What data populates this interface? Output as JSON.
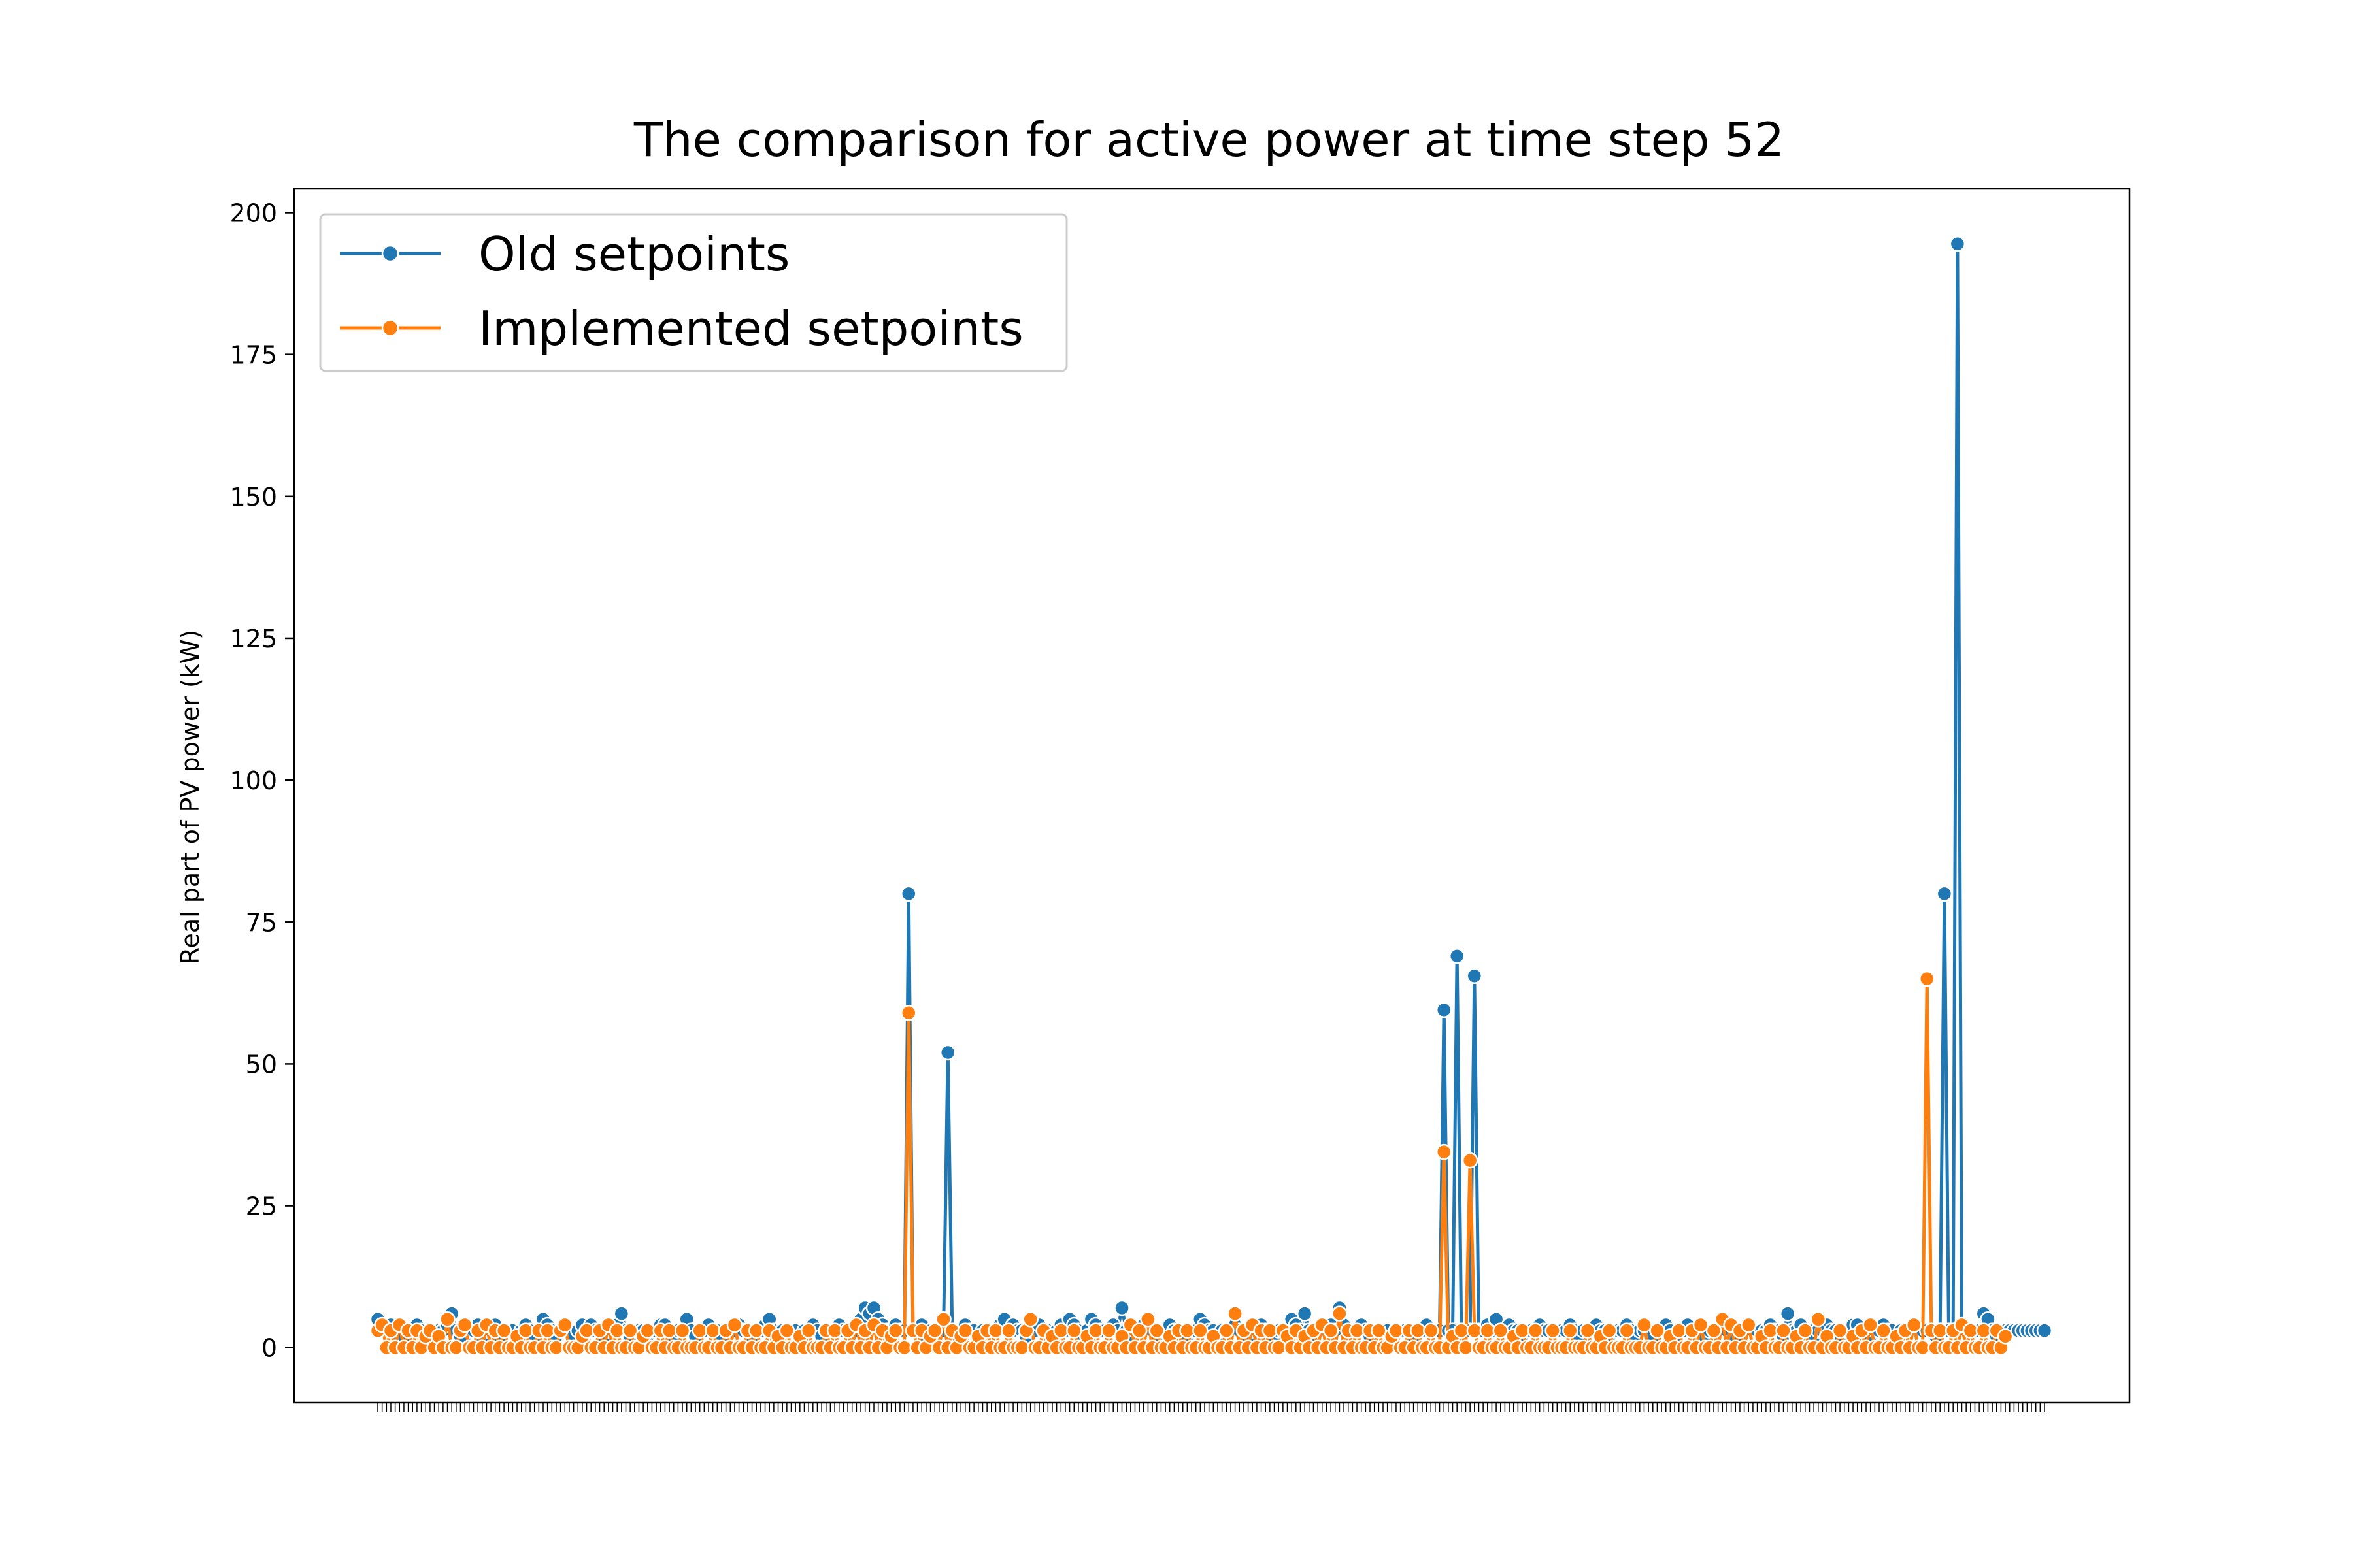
{
  "chart_data": {
    "type": "line",
    "title": "The comparison for active power at time step 52",
    "xlabel": "",
    "ylabel": "Real part of PV power (kW)",
    "ylim": [
      -9.7,
      204.2
    ],
    "yticks": [
      0,
      25,
      50,
      75,
      100,
      125,
      150,
      175,
      200
    ],
    "grid": false,
    "legend_position": "upper-left",
    "colors": {
      "old": "#1f77b4",
      "implemented": "#ff7f0e"
    },
    "series": [
      {
        "name": "Old setpoints",
        "values": [
          5,
          3,
          3,
          4,
          3,
          2,
          2,
          3,
          3,
          4,
          3,
          2,
          2,
          2,
          3,
          3,
          4,
          6,
          3,
          2,
          2,
          3,
          3,
          4,
          2,
          3,
          3,
          4,
          2,
          3,
          3,
          3,
          2,
          3,
          4,
          3,
          2,
          3,
          5,
          4,
          3,
          2,
          3,
          3,
          3,
          2,
          3,
          4,
          3,
          4,
          3,
          3,
          2,
          3,
          3,
          4,
          6,
          3,
          2,
          3,
          3,
          3,
          2,
          3,
          3,
          4,
          4,
          3,
          2,
          3,
          3,
          5,
          3,
          2,
          3,
          3,
          4,
          3,
          3,
          2,
          3,
          3,
          3,
          4,
          3,
          3,
          2,
          3,
          3,
          4,
          5,
          3,
          2,
          3,
          3,
          3,
          3,
          2,
          3,
          3,
          4,
          3,
          2,
          3,
          3,
          3,
          4,
          3,
          3,
          3,
          3,
          5,
          7,
          6,
          7,
          5,
          4,
          3,
          3,
          4,
          3,
          3,
          80,
          3,
          3,
          4,
          2,
          3,
          2,
          3,
          3,
          52,
          3,
          3,
          3,
          4,
          3,
          3,
          2,
          3,
          3,
          3,
          3,
          4,
          5,
          3,
          4,
          3,
          3,
          2,
          3,
          3,
          4,
          3,
          3,
          2,
          3,
          4,
          3,
          5,
          4,
          3,
          2,
          3,
          5,
          4,
          3,
          3,
          3,
          4,
          3,
          7,
          3,
          2,
          3,
          3,
          4,
          3,
          3,
          2,
          3,
          3,
          4,
          3,
          3,
          3,
          2,
          3,
          3,
          5,
          4,
          3,
          3,
          2,
          3,
          3,
          3,
          4,
          3,
          3,
          2,
          3,
          3,
          4,
          3,
          3,
          2,
          3,
          3,
          3,
          5,
          4,
          3,
          6,
          3,
          2,
          3,
          3,
          3,
          4,
          3,
          7,
          4,
          3,
          3,
          3,
          4,
          3,
          2,
          3,
          3,
          3,
          3,
          2,
          3,
          3,
          3,
          3,
          2,
          3,
          3,
          4,
          3,
          3,
          3,
          59.5,
          3,
          3,
          69,
          3,
          3,
          3,
          65.5,
          3,
          3,
          4,
          3,
          5,
          3,
          3,
          4,
          3,
          3,
          2,
          3,
          3,
          3,
          4,
          3,
          3,
          3,
          3,
          3,
          3,
          4,
          3,
          2,
          3,
          3,
          3,
          4,
          3,
          3,
          2,
          3,
          3,
          3,
          4,
          3,
          2,
          3,
          3,
          3,
          2,
          3,
          3,
          4,
          3,
          2,
          3,
          3,
          4,
          3,
          3,
          3,
          2,
          3,
          3,
          3,
          4,
          3,
          3,
          2,
          3,
          3,
          4,
          3,
          3,
          3,
          3,
          4,
          3,
          3,
          2,
          6,
          3,
          3,
          4,
          3,
          3,
          2,
          3,
          3,
          4,
          3,
          3,
          2,
          3,
          3,
          4,
          4,
          3,
          3,
          2,
          3,
          3,
          4,
          3,
          3,
          2,
          3,
          3,
          3,
          4,
          3,
          3,
          3,
          3,
          2,
          3,
          80,
          3,
          3,
          194.5,
          3,
          3,
          3,
          3,
          3,
          6,
          5,
          3,
          2,
          3,
          3,
          3,
          3,
          3,
          3,
          3,
          3,
          3,
          3,
          3
        ],
        "marker": "circle"
      },
      {
        "name": "Implemented setpoints",
        "values": [
          3,
          4,
          0,
          3,
          0,
          4,
          0,
          3,
          0,
          3,
          0,
          2,
          3,
          0,
          2,
          0,
          5,
          0,
          0,
          3,
          4,
          0,
          0,
          3,
          0,
          4,
          0,
          3,
          0,
          3,
          0,
          0,
          2,
          0,
          3,
          0,
          0,
          3,
          0,
          3,
          0,
          0,
          3,
          4,
          0,
          0,
          0,
          2,
          3,
          0,
          0,
          3,
          0,
          4,
          0,
          3,
          0,
          0,
          3,
          0,
          0,
          2,
          3,
          0,
          0,
          3,
          0,
          3,
          0,
          0,
          3,
          0,
          0,
          0,
          3,
          0,
          0,
          3,
          0,
          0,
          3,
          0,
          4,
          0,
          0,
          3,
          0,
          3,
          0,
          0,
          3,
          0,
          2,
          0,
          3,
          0,
          0,
          2,
          0,
          3,
          0,
          0,
          0,
          3,
          0,
          3,
          0,
          0,
          3,
          0,
          4,
          0,
          3,
          0,
          4,
          0,
          3,
          0,
          2,
          3,
          0,
          0,
          59,
          3,
          0,
          3,
          0,
          2,
          3,
          0,
          5,
          0,
          3,
          0,
          2,
          3,
          0,
          0,
          2,
          0,
          3,
          0,
          3,
          0,
          0,
          3,
          0,
          0,
          0,
          3,
          5,
          0,
          0,
          3,
          0,
          2,
          0,
          3,
          0,
          0,
          3,
          0,
          0,
          2,
          0,
          3,
          0,
          0,
          3,
          0,
          0,
          2,
          0,
          4,
          0,
          3,
          0,
          5,
          0,
          3,
          0,
          0,
          2,
          0,
          3,
          0,
          3,
          0,
          0,
          3,
          0,
          0,
          2,
          0,
          0,
          3,
          0,
          6,
          0,
          3,
          0,
          4,
          0,
          3,
          0,
          3,
          0,
          0,
          3,
          2,
          0,
          3,
          0,
          2,
          0,
          3,
          0,
          4,
          0,
          3,
          0,
          6,
          0,
          3,
          0,
          3,
          0,
          0,
          3,
          0,
          3,
          0,
          0,
          2,
          3,
          0,
          0,
          3,
          0,
          3,
          0,
          0,
          3,
          0,
          0,
          34.5,
          0,
          2,
          0,
          3,
          0,
          33,
          3,
          0,
          0,
          3,
          0,
          0,
          3,
          0,
          0,
          2,
          0,
          3,
          0,
          0,
          3,
          0,
          0,
          0,
          3,
          0,
          0,
          0,
          3,
          0,
          0,
          0,
          3,
          0,
          0,
          2,
          0,
          3,
          0,
          0,
          0,
          3,
          0,
          0,
          0,
          4,
          0,
          0,
          3,
          0,
          0,
          2,
          0,
          3,
          0,
          0,
          3,
          0,
          4,
          0,
          0,
          3,
          0,
          5,
          0,
          4,
          0,
          3,
          0,
          4,
          0,
          0,
          2,
          0,
          3,
          0,
          0,
          3,
          0,
          0,
          2,
          0,
          3,
          0,
          0,
          5,
          0,
          2,
          0,
          0,
          3,
          0,
          0,
          2,
          0,
          3,
          0,
          4,
          0,
          0,
          3,
          0,
          0,
          2,
          0,
          3,
          0,
          4,
          0,
          0,
          65,
          3,
          0,
          3,
          0,
          0,
          3,
          0,
          4,
          0,
          3,
          0,
          0,
          3,
          0,
          0,
          3,
          0,
          2
        ],
        "marker": "circle"
      }
    ],
    "legend": [
      "Old setpoints",
      "Implemented setpoints"
    ]
  }
}
